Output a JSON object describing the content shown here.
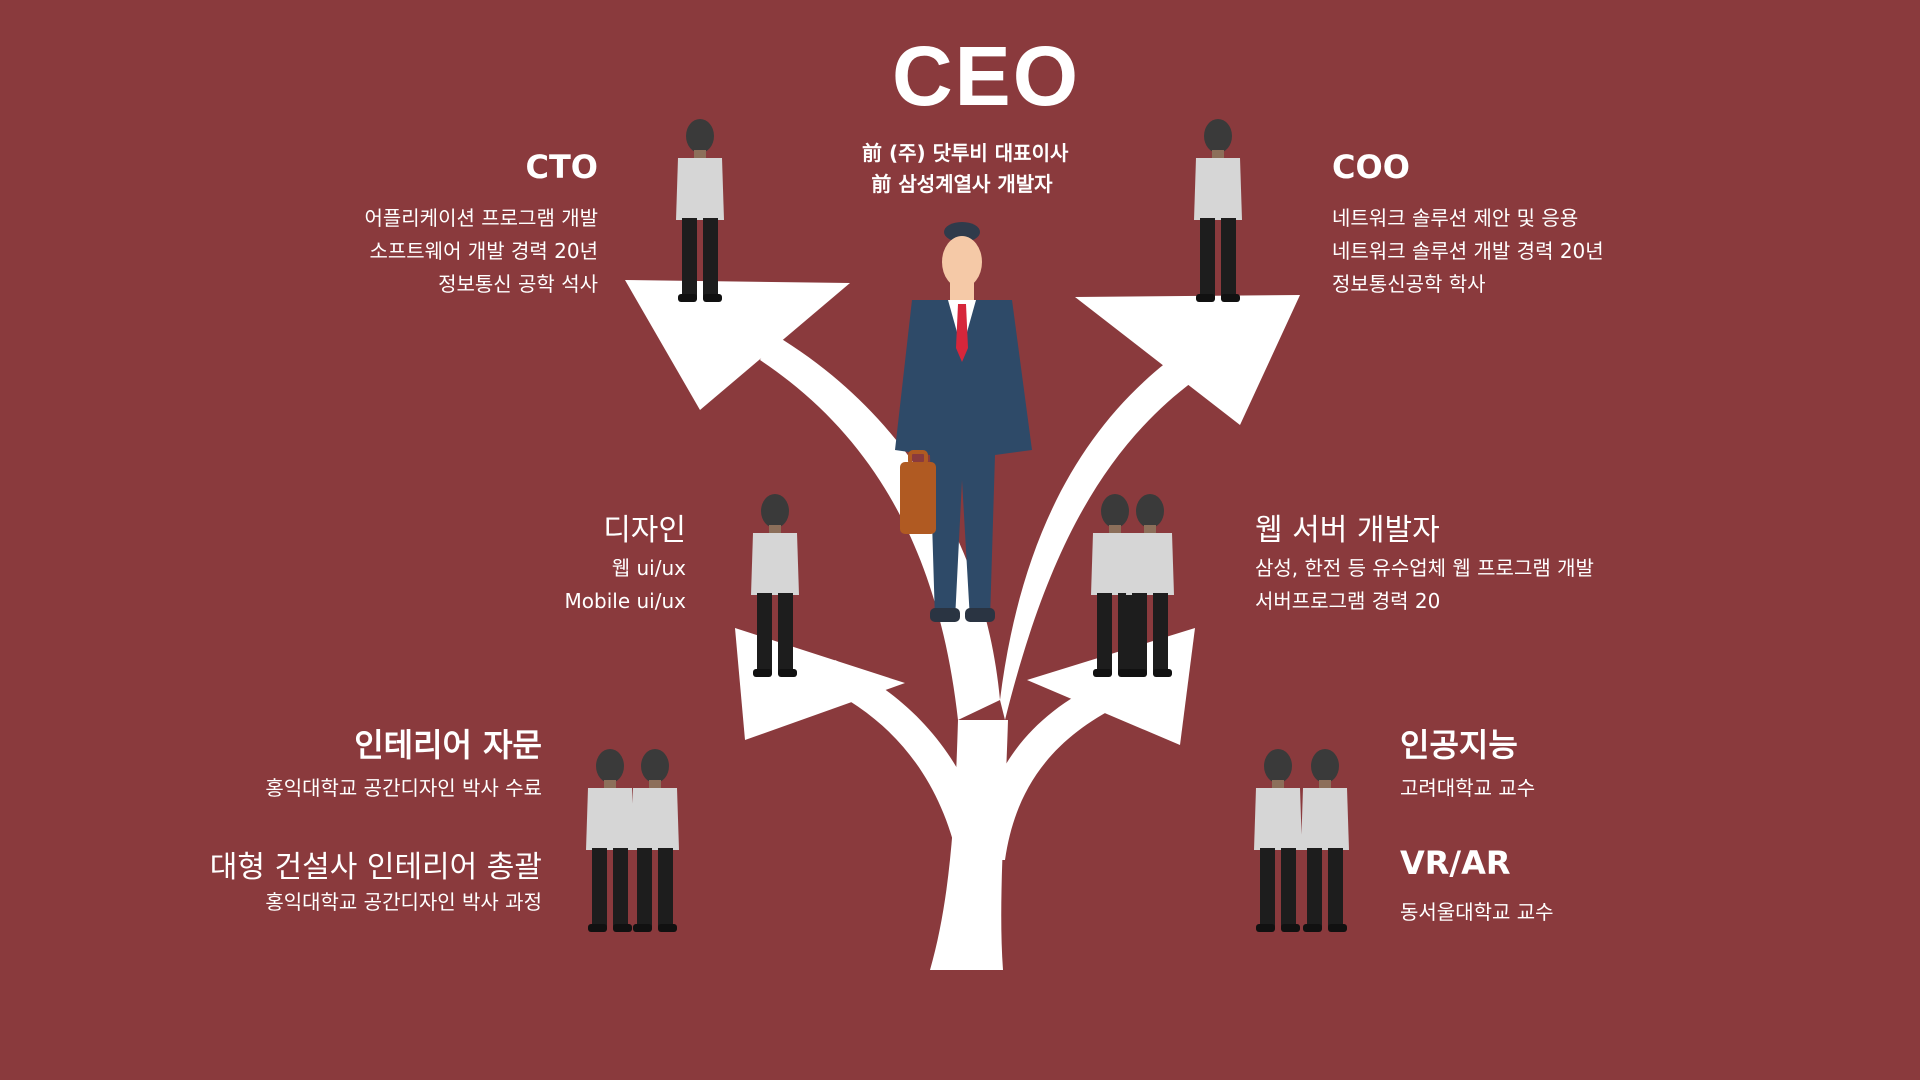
{
  "colors": {
    "background": "#8a3a3d",
    "arrow": "#ffffff",
    "text": "#ffffff"
  },
  "ceo": {
    "title": "CEO",
    "lines": [
      "前 (주) 닷투비 대표이사",
      "前 삼성계열사 개발자"
    ]
  },
  "cto": {
    "title": "CTO",
    "lines": [
      "어플리케이션 프로그램 개발",
      "소프트웨어 개발 경력 20년",
      "정보통신 공학 석사"
    ]
  },
  "coo": {
    "title": "COO",
    "lines": [
      "네트워크 솔루션 제안 및 응용",
      "네트워크 솔루션 개발 경력 20년",
      "정보통신공학 학사"
    ]
  },
  "design": {
    "title": "디자인",
    "lines": [
      "웹 ui/ux",
      "Mobile ui/ux"
    ]
  },
  "web_server": {
    "title": "웹 서버 개발자",
    "lines": [
      "삼성, 한전 등 유수업체 웹 프로그램 개발",
      "서버프로그램 경력 20"
    ]
  },
  "interior": {
    "title": "인테리어 자문",
    "line1": "홍익대학교 공간디자인 박사 수료",
    "title2": "대형 건설사 인테리어 총괄",
    "line2": "홍익대학교 공간디자인 박사 과정"
  },
  "ai": {
    "title": "인공지능",
    "line1": "고려대학교 교수",
    "title2": "VR/AR",
    "line2": "동서울대학교 교수"
  }
}
